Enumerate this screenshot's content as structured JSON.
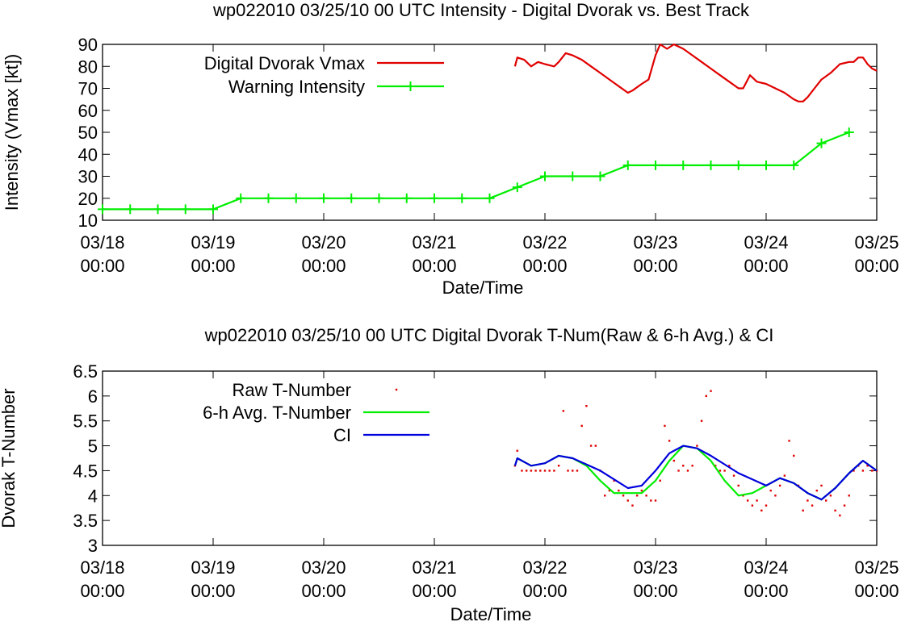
{
  "chart_data": [
    {
      "type": "line",
      "title": "wp022010 03/25/10  00 UTC Intensity - Digital Dvorak vs. Best Track",
      "xlabel": "Date/Time",
      "ylabel": "Intensity (Vmax [kt])",
      "xlim": [
        "03/18 00:00",
        "03/25 00:00"
      ],
      "ylim": [
        10,
        90
      ],
      "yticks": [
        10,
        20,
        30,
        40,
        50,
        60,
        70,
        80,
        90
      ],
      "xticks": [
        {
          "date": "03/18",
          "time": "00:00"
        },
        {
          "date": "03/19",
          "time": "00:00"
        },
        {
          "date": "03/20",
          "time": "00:00"
        },
        {
          "date": "03/21",
          "time": "00:00"
        },
        {
          "date": "03/22",
          "time": "00:00"
        },
        {
          "date": "03/23",
          "time": "00:00"
        },
        {
          "date": "03/24",
          "time": "00:00"
        },
        {
          "date": "03/25",
          "time": "00:00"
        }
      ],
      "grid": false,
      "legend": "top-left",
      "series": [
        {
          "name": "Digital Dvorak Vmax",
          "color": "#e00000",
          "style": "line",
          "points": [
            [
              "03/21 17:30",
              80
            ],
            [
              "03/21 18:00",
              84
            ],
            [
              "03/21 19:30",
              83
            ],
            [
              "03/21 21:00",
              80
            ],
            [
              "03/21 22:30",
              82
            ],
            [
              "03/22 00:00",
              81
            ],
            [
              "03/22 02:00",
              80
            ],
            [
              "03/22 03:00",
              82
            ],
            [
              "03/22 04:30",
              86
            ],
            [
              "03/22 06:00",
              85
            ],
            [
              "03/22 08:00",
              83
            ],
            [
              "03/22 10:00",
              80
            ],
            [
              "03/22 12:00",
              77
            ],
            [
              "03/22 14:00",
              74
            ],
            [
              "03/22 16:00",
              71
            ],
            [
              "03/22 18:00",
              68
            ],
            [
              "03/22 19:00",
              69
            ],
            [
              "03/22 21:00",
              72
            ],
            [
              "03/22 22:30",
              74
            ],
            [
              "03/23 00:00",
              85
            ],
            [
              "03/23 01:00",
              90
            ],
            [
              "03/23 02:30",
              88
            ],
            [
              "03/23 04:00",
              90
            ],
            [
              "03/23 06:00",
              88
            ],
            [
              "03/23 08:00",
              85
            ],
            [
              "03/23 10:00",
              82
            ],
            [
              "03/23 12:00",
              79
            ],
            [
              "03/23 14:00",
              76
            ],
            [
              "03/23 16:00",
              73
            ],
            [
              "03/23 18:00",
              70
            ],
            [
              "03/23 19:00",
              70
            ],
            [
              "03/23 20:30",
              76
            ],
            [
              "03/23 22:00",
              73
            ],
            [
              "03/24 00:00",
              72
            ],
            [
              "03/24 02:00",
              70
            ],
            [
              "03/24 04:00",
              68
            ],
            [
              "03/24 06:00",
              65
            ],
            [
              "03/24 07:00",
              64
            ],
            [
              "03/24 08:00",
              64
            ],
            [
              "03/24 09:00",
              66
            ],
            [
              "03/24 10:30",
              70
            ],
            [
              "03/24 12:00",
              74
            ],
            [
              "03/24 14:00",
              77
            ],
            [
              "03/24 16:00",
              81
            ],
            [
              "03/24 18:00",
              82
            ],
            [
              "03/24 19:00",
              82
            ],
            [
              "03/24 20:00",
              84
            ],
            [
              "03/24 21:00",
              84
            ],
            [
              "03/24 22:00",
              81
            ],
            [
              "03/24 23:00",
              79
            ],
            [
              "03/25 00:00",
              78
            ]
          ]
        },
        {
          "name": "Warning Intensity",
          "color": "#00ee00",
          "style": "linespoints",
          "points": [
            [
              "03/18 00:00",
              15
            ],
            [
              "03/18 06:00",
              15
            ],
            [
              "03/18 12:00",
              15
            ],
            [
              "03/18 18:00",
              15
            ],
            [
              "03/19 00:00",
              15
            ],
            [
              "03/19 06:00",
              20
            ],
            [
              "03/19 12:00",
              20
            ],
            [
              "03/19 18:00",
              20
            ],
            [
              "03/20 00:00",
              20
            ],
            [
              "03/20 06:00",
              20
            ],
            [
              "03/20 12:00",
              20
            ],
            [
              "03/20 18:00",
              20
            ],
            [
              "03/21 00:00",
              20
            ],
            [
              "03/21 06:00",
              20
            ],
            [
              "03/21 12:00",
              20
            ],
            [
              "03/21 18:00",
              25
            ],
            [
              "03/22 00:00",
              30
            ],
            [
              "03/22 06:00",
              30
            ],
            [
              "03/22 12:00",
              30
            ],
            [
              "03/22 18:00",
              35
            ],
            [
              "03/23 00:00",
              35
            ],
            [
              "03/23 06:00",
              35
            ],
            [
              "03/23 12:00",
              35
            ],
            [
              "03/23 18:00",
              35
            ],
            [
              "03/24 00:00",
              35
            ],
            [
              "03/24 06:00",
              35
            ],
            [
              "03/24 12:00",
              45
            ],
            [
              "03/24 18:00",
              50
            ]
          ]
        }
      ]
    },
    {
      "type": "scatter",
      "title": "wp022010 03/25/10  00 UTC Digital Dvorak T-Num(Raw & 6-h Avg.) & CI",
      "xlabel": "Date/Time",
      "ylabel": "Dvorak T-Number",
      "xlim": [
        "03/18 00:00",
        "03/25 00:00"
      ],
      "ylim": [
        3,
        6.5
      ],
      "yticks": [
        "3",
        "3.5",
        "4",
        "4.5",
        "5",
        "5.5",
        "6",
        "6.5"
      ],
      "xticks": [
        {
          "date": "03/18",
          "time": "00:00"
        },
        {
          "date": "03/19",
          "time": "00:00"
        },
        {
          "date": "03/20",
          "time": "00:00"
        },
        {
          "date": "03/21",
          "time": "00:00"
        },
        {
          "date": "03/22",
          "time": "00:00"
        },
        {
          "date": "03/23",
          "time": "00:00"
        },
        {
          "date": "03/24",
          "time": "00:00"
        },
        {
          "date": "03/25",
          "time": "00:00"
        }
      ],
      "grid": false,
      "legend": "top-left",
      "series": [
        {
          "name": "Raw T-Number",
          "color": "#e00000",
          "style": "points",
          "points": [
            [
              "03/21 17:30",
              4.6
            ],
            [
              "03/21 18:00",
              4.9
            ],
            [
              "03/21 19:00",
              4.5
            ],
            [
              "03/21 20:00",
              4.5
            ],
            [
              "03/21 21:00",
              4.5
            ],
            [
              "03/21 22:00",
              4.5
            ],
            [
              "03/21 23:00",
              4.5
            ],
            [
              "03/22 00:00",
              4.5
            ],
            [
              "03/22 01:00",
              4.5
            ],
            [
              "03/22 02:00",
              4.5
            ],
            [
              "03/22 03:00",
              4.6
            ],
            [
              "03/22 04:00",
              5.7
            ],
            [
              "03/22 05:00",
              4.5
            ],
            [
              "03/22 06:00",
              4.5
            ],
            [
              "03/22 07:00",
              4.5
            ],
            [
              "03/22 08:00",
              5.4
            ],
            [
              "03/22 09:00",
              5.8
            ],
            [
              "03/22 10:00",
              5.0
            ],
            [
              "03/22 11:00",
              5.0
            ],
            [
              "03/22 12:00",
              4.5
            ],
            [
              "03/22 13:00",
              4.0
            ],
            [
              "03/22 14:00",
              4.1
            ],
            [
              "03/22 15:00",
              4.3
            ],
            [
              "03/22 16:00",
              4.1
            ],
            [
              "03/22 17:00",
              4.0
            ],
            [
              "03/22 18:00",
              3.9
            ],
            [
              "03/22 19:00",
              3.8
            ],
            [
              "03/22 20:00",
              4.0
            ],
            [
              "03/22 21:00",
              4.1
            ],
            [
              "03/22 22:00",
              4.0
            ],
            [
              "03/22 23:00",
              3.9
            ],
            [
              "03/23 00:00",
              3.9
            ],
            [
              "03/23 01:00",
              4.3
            ],
            [
              "03/23 02:00",
              5.4
            ],
            [
              "03/23 03:00",
              5.1
            ],
            [
              "03/23 04:00",
              4.7
            ],
            [
              "03/23 05:00",
              4.5
            ],
            [
              "03/23 06:00",
              4.6
            ],
            [
              "03/23 07:00",
              4.5
            ],
            [
              "03/23 08:00",
              4.6
            ],
            [
              "03/23 09:00",
              5.0
            ],
            [
              "03/23 10:00",
              5.5
            ],
            [
              "03/23 11:00",
              6.0
            ],
            [
              "03/23 12:00",
              6.1
            ],
            [
              "03/23 13:00",
              4.6
            ],
            [
              "03/23 14:00",
              4.5
            ],
            [
              "03/23 15:00",
              4.5
            ],
            [
              "03/23 16:00",
              4.6
            ],
            [
              "03/23 17:00",
              4.4
            ],
            [
              "03/23 18:00",
              4.2
            ],
            [
              "03/23 19:00",
              4.0
            ],
            [
              "03/23 20:00",
              3.9
            ],
            [
              "03/23 21:00",
              3.8
            ],
            [
              "03/23 22:00",
              3.9
            ],
            [
              "03/23 23:00",
              3.7
            ],
            [
              "03/24 00:00",
              3.8
            ],
            [
              "03/24 01:00",
              4.1
            ],
            [
              "03/24 02:00",
              4.0
            ],
            [
              "03/24 03:00",
              4.2
            ],
            [
              "03/24 04:00",
              4.4
            ],
            [
              "03/24 05:00",
              5.1
            ],
            [
              "03/24 06:00",
              4.8
            ],
            [
              "03/24 07:00",
              4.2
            ],
            [
              "03/24 08:00",
              3.7
            ],
            [
              "03/24 09:00",
              3.9
            ],
            [
              "03/24 10:00",
              3.8
            ],
            [
              "03/24 11:00",
              4.1
            ],
            [
              "03/24 12:00",
              4.2
            ],
            [
              "03/24 13:00",
              3.9
            ],
            [
              "03/24 14:00",
              4.0
            ],
            [
              "03/24 15:00",
              3.7
            ],
            [
              "03/24 16:00",
              3.6
            ],
            [
              "03/24 17:00",
              3.8
            ],
            [
              "03/24 18:00",
              4.0
            ],
            [
              "03/24 19:00",
              4.5
            ],
            [
              "03/24 20:00",
              4.6
            ],
            [
              "03/24 21:00",
              4.5
            ],
            [
              "03/24 22:00",
              4.6
            ],
            [
              "03/24 23:00",
              4.5
            ],
            [
              "03/25 00:00",
              4.5
            ]
          ]
        },
        {
          "name": "6-h Avg. T-Number",
          "color": "#00ee00",
          "style": "line",
          "points": [
            [
              "03/21 17:30",
              4.6
            ],
            [
              "03/21 18:00",
              4.75
            ],
            [
              "03/21 21:00",
              4.6
            ],
            [
              "03/22 00:00",
              4.65
            ],
            [
              "03/22 03:00",
              4.8
            ],
            [
              "03/22 06:00",
              4.75
            ],
            [
              "03/22 09:00",
              4.6
            ],
            [
              "03/22 12:00",
              4.3
            ],
            [
              "03/22 15:00",
              4.05
            ],
            [
              "03/22 18:00",
              4.05
            ],
            [
              "03/22 21:00",
              4.05
            ],
            [
              "03/23 00:00",
              4.3
            ],
            [
              "03/23 03:00",
              4.7
            ],
            [
              "03/23 06:00",
              5.0
            ],
            [
              "03/23 09:00",
              4.95
            ],
            [
              "03/23 12:00",
              4.7
            ],
            [
              "03/23 15:00",
              4.3
            ],
            [
              "03/23 18:00",
              4.0
            ],
            [
              "03/23 21:00",
              4.05
            ],
            [
              "03/24 00:00",
              4.2
            ],
            [
              "03/24 03:00",
              4.35
            ],
            [
              "03/24 06:00",
              4.25
            ],
            [
              "03/24 09:00",
              4.05
            ],
            [
              "03/24 12:00",
              3.92
            ],
            [
              "03/24 15:00",
              4.15
            ],
            [
              "03/24 18:00",
              4.45
            ],
            [
              "03/24 21:00",
              4.7
            ],
            [
              "03/25 00:00",
              4.5
            ]
          ]
        },
        {
          "name": "CI",
          "color": "#0000dd",
          "style": "line",
          "points": [
            [
              "03/21 17:30",
              4.6
            ],
            [
              "03/21 18:00",
              4.75
            ],
            [
              "03/21 21:00",
              4.6
            ],
            [
              "03/22 00:00",
              4.65
            ],
            [
              "03/22 03:00",
              4.8
            ],
            [
              "03/22 06:00",
              4.75
            ],
            [
              "03/22 12:00",
              4.5
            ],
            [
              "03/22 18:00",
              4.15
            ],
            [
              "03/22 21:00",
              4.2
            ],
            [
              "03/23 00:00",
              4.5
            ],
            [
              "03/23 03:00",
              4.85
            ],
            [
              "03/23 06:00",
              5.0
            ],
            [
              "03/23 09:00",
              4.95
            ],
            [
              "03/23 12:00",
              4.8
            ],
            [
              "03/23 18:00",
              4.45
            ],
            [
              "03/24 00:00",
              4.2
            ],
            [
              "03/24 03:00",
              4.35
            ],
            [
              "03/24 06:00",
              4.25
            ],
            [
              "03/24 09:00",
              4.05
            ],
            [
              "03/24 12:00",
              3.92
            ],
            [
              "03/24 15:00",
              4.15
            ],
            [
              "03/24 18:00",
              4.45
            ],
            [
              "03/24 21:00",
              4.7
            ],
            [
              "03/25 00:00",
              4.5
            ]
          ]
        }
      ]
    }
  ]
}
